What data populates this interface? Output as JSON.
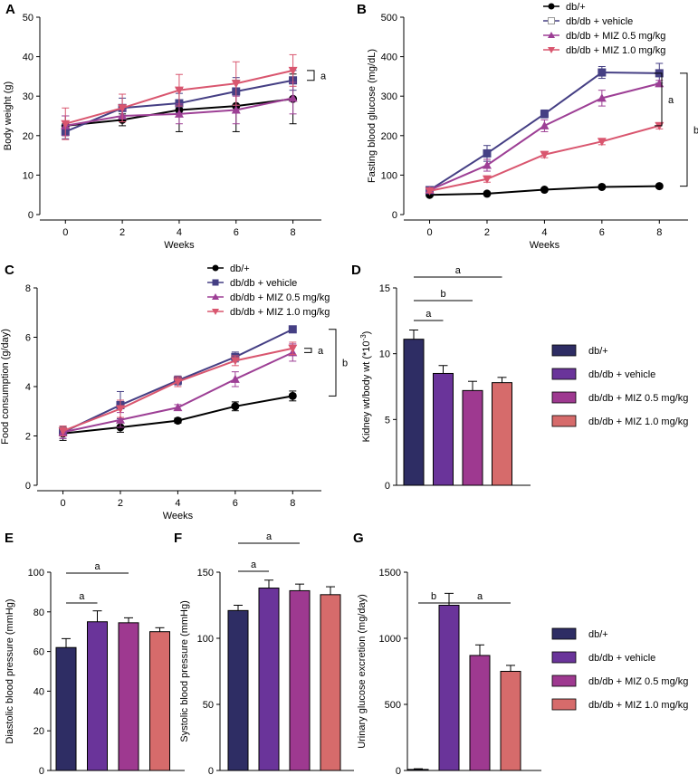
{
  "chart_data": [
    {
      "id": "A",
      "panel_label": "A",
      "type": "line",
      "xlabel": "Weeks",
      "ylabel": "Body weight (g)",
      "x": [
        0,
        2,
        4,
        6,
        8
      ],
      "xlim": [
        -0.9,
        9
      ],
      "ylim": [
        0,
        50
      ],
      "xticks": [
        "0",
        "2",
        "4",
        "6",
        "8"
      ],
      "yticks": [
        "0",
        "10",
        "20",
        "30",
        "40",
        "50"
      ],
      "series": [
        {
          "name": "db/+",
          "marker": "circle",
          "color": "#000000",
          "values": [
            22.5,
            24,
            26.5,
            27.5,
            29.3
          ],
          "err": [
            2.5,
            1.5,
            5.5,
            6.5,
            6.3
          ]
        },
        {
          "name": "db/db + vehicle",
          "marker": "square",
          "color": "#453f84",
          "values": [
            21,
            27,
            28.2,
            31.2,
            34
          ],
          "err": [
            1.8,
            2.5,
            2.5,
            3.5,
            2.5
          ]
        },
        {
          "name": "db/db + MIZ 0.5 mg/kg",
          "marker": "triangle-up",
          "color": "#9d3f95",
          "values": [
            22.5,
            25,
            25.5,
            26.5,
            29.5
          ],
          "err": [
            2.5,
            1.5,
            2.5,
            3.5,
            4
          ]
        },
        {
          "name": "db/db + MIZ 1.0 mg/kg",
          "marker": "triangle-down",
          "color": "#d9566f",
          "values": [
            23,
            27,
            31.5,
            33.2,
            36.5
          ],
          "err": [
            4,
            3.5,
            4,
            5.5,
            4
          ]
        }
      ],
      "annotations": [
        {
          "label": "a",
          "from_value": 34,
          "to_value": 36.5
        }
      ]
    },
    {
      "id": "B",
      "panel_label": "B",
      "type": "line",
      "xlabel": "Weeks",
      "ylabel": "Fasting blood glucose (mg/dL)",
      "x": [
        0,
        2,
        4,
        6,
        8
      ],
      "xlim": [
        -0.9,
        9
      ],
      "ylim": [
        0,
        500
      ],
      "xticks": [
        "0",
        "2",
        "4",
        "6",
        "8"
      ],
      "yticks": [
        "0",
        "100",
        "200",
        "300",
        "400",
        "500"
      ],
      "series": [
        {
          "name": "db/+",
          "marker": "circle",
          "color": "#000000",
          "values": [
            50,
            53,
            63,
            70,
            72
          ],
          "err": [
            4,
            3,
            3,
            3,
            3
          ]
        },
        {
          "name": "db/db + vehicle",
          "marker": "square",
          "color": "#453f84",
          "values": [
            62,
            155,
            255,
            360,
            358
          ],
          "err": [
            5,
            20,
            10,
            15,
            25
          ]
        },
        {
          "name": "db/db + MIZ 0.5 mg/kg",
          "marker": "triangle-up",
          "color": "#9d3f95",
          "values": [
            62,
            125,
            225,
            295,
            332
          ],
          "err": [
            5,
            15,
            15,
            20,
            8
          ]
        },
        {
          "name": "db/db + MIZ 1.0 mg/kg",
          "marker": "triangle-down",
          "color": "#d9566f",
          "values": [
            60,
            90,
            152,
            185,
            225
          ],
          "err": [
            4,
            8,
            8,
            8,
            8
          ]
        }
      ],
      "annotations": [
        {
          "label": "a",
          "from_value": 225,
          "to_value": 358
        },
        {
          "label": "b",
          "from_value": 72,
          "to_value": 358
        }
      ],
      "legend": [
        "db/+",
        "db/db + vehicle",
        "db/db + MIZ 0.5 mg/kg",
        "db/db + MIZ 1.0 mg/kg"
      ]
    },
    {
      "id": "C",
      "panel_label": "C",
      "type": "line",
      "xlabel": "Weeks",
      "ylabel": "Food consumption (g/day)",
      "x": [
        0,
        2,
        4,
        6,
        8
      ],
      "xlim": [
        -0.9,
        9
      ],
      "ylim": [
        0,
        8
      ],
      "xticks": [
        "0",
        "2",
        "4",
        "6",
        "8"
      ],
      "yticks": [
        "0",
        "2",
        "4",
        "6",
        "8"
      ],
      "series": [
        {
          "name": "db/+",
          "marker": "circle",
          "color": "#000000",
          "values": [
            2.1,
            2.35,
            2.62,
            3.2,
            3.62
          ],
          "err": [
            0.28,
            0.2,
            0.1,
            0.18,
            0.2
          ]
        },
        {
          "name": "db/db + vehicle",
          "marker": "square",
          "color": "#453f84",
          "values": [
            2.15,
            3.25,
            4.25,
            5.2,
            6.32
          ],
          "err": [
            0.25,
            0.55,
            0.18,
            0.2,
            0.05
          ]
        },
        {
          "name": "db/db + MIZ 0.5 mg/kg",
          "marker": "triangle-up",
          "color": "#9d3f95",
          "values": [
            2.15,
            2.65,
            3.15,
            4.3,
            5.38
          ],
          "err": [
            0.25,
            0.3,
            0.12,
            0.3,
            0.35
          ]
        },
        {
          "name": "db/db + MIZ 1.0 mg/kg",
          "marker": "triangle-down",
          "color": "#d9566f",
          "values": [
            2.2,
            3.1,
            4.2,
            5.05,
            5.55
          ],
          "err": [
            0.2,
            0.35,
            0.2,
            0.2,
            0.25
          ]
        }
      ],
      "annotations": [
        {
          "label": "a",
          "from_value": 5.38,
          "to_value": 5.55
        },
        {
          "label": "b",
          "from_value": 3.62,
          "to_value": 6.32
        }
      ],
      "legend": [
        "db/+",
        "db/db + vehicle",
        "db/db + MIZ 0.5 mg/kg",
        "db/db + MIZ 1.0 mg/kg"
      ]
    },
    {
      "id": "D",
      "panel_label": "D",
      "type": "bar",
      "ylabel": "Kidney wt/body wt (*10",
      "ylabel_sup": "-3",
      "ylabel_end": ")",
      "categories": [
        "db/+",
        "db/db + vehicle",
        "db/db + MIZ 0.5 mg/kg",
        "db/db + MIZ 1.0 mg/kg"
      ],
      "values": [
        11.1,
        8.5,
        7.2,
        7.8
      ],
      "err": [
        0.7,
        0.6,
        0.7,
        0.4
      ],
      "ylim": [
        0,
        15
      ],
      "yticks": [
        "0",
        "5",
        "10",
        "15"
      ],
      "annotations": [
        {
          "label": "a",
          "from": 0,
          "to": 1
        },
        {
          "label": "b",
          "from": 0,
          "to": 2
        },
        {
          "label": "a",
          "from": 0,
          "to": 3
        }
      ],
      "legend": [
        "db/+",
        "db/db + vehicle",
        "db/db + MIZ 0.5 mg/kg",
        "db/db + MIZ 1.0 mg/kg"
      ]
    },
    {
      "id": "E",
      "panel_label": "E",
      "type": "bar",
      "ylabel": "Diastolic blood pressure (mmHg)",
      "categories": [
        "db/+",
        "db/db + vehicle",
        "db/db + MIZ 0.5 mg/kg",
        "db/db + MIZ 1.0 mg/kg"
      ],
      "values": [
        62,
        75,
        74.5,
        70
      ],
      "err": [
        4.5,
        5.5,
        2.5,
        2
      ],
      "ylim": [
        0,
        100
      ],
      "yticks": [
        "0",
        "20",
        "40",
        "60",
        "80",
        "100"
      ],
      "annotations": [
        {
          "label": "a",
          "from": 0,
          "to": 1
        },
        {
          "label": "a",
          "from": 0,
          "to": 2
        }
      ]
    },
    {
      "id": "F",
      "panel_label": "F",
      "type": "bar",
      "ylabel": "Systolic blood pressure (mmHg)",
      "categories": [
        "db/+",
        "db/db + vehicle",
        "db/db + MIZ 0.5 mg/kg",
        "db/db + MIZ 1.0 mg/kg"
      ],
      "values": [
        121,
        138,
        136,
        133
      ],
      "err": [
        4,
        6,
        5,
        6
      ],
      "ylim": [
        0,
        150
      ],
      "yticks": [
        "0",
        "50",
        "100",
        "150"
      ],
      "annotations": [
        {
          "label": "a",
          "from": 0,
          "to": 1
        },
        {
          "label": "a",
          "from": 0,
          "to": 2
        }
      ]
    },
    {
      "id": "G",
      "panel_label": "G",
      "type": "bar",
      "ylabel": "Urinary glucose excretion (mg/day)",
      "categories": [
        "db/+",
        "db/db + vehicle",
        "db/db + MIZ 0.5 mg/kg",
        "db/db + MIZ 1.0 mg/kg"
      ],
      "values": [
        8,
        1250,
        870,
        750
      ],
      "err": [
        5,
        90,
        80,
        45
      ],
      "ylim": [
        0,
        1500
      ],
      "yticks": [
        "0",
        "500",
        "1000",
        "1500"
      ],
      "annotations": [
        {
          "label": "b",
          "from": 0,
          "to": 1
        },
        {
          "label": "a",
          "from": 1,
          "to": 3
        }
      ],
      "legend": [
        "db/+",
        "db/db + vehicle",
        "db/db + MIZ 0.5 mg/kg",
        "db/db + MIZ 1.0 mg/kg"
      ]
    }
  ],
  "colors": {
    "db_plus": "#2e2d64",
    "vehicle": "#6a349a",
    "miz05": "#9e3990",
    "miz10": "#d66b6b",
    "axis": "#000000"
  }
}
